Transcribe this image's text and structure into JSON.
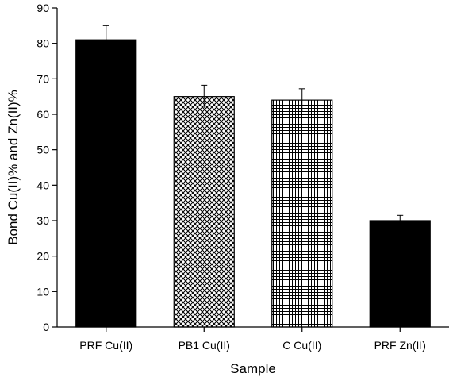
{
  "chart_data": {
    "type": "bar",
    "categories": [
      "PRF Cu(II)",
      "PB1 Cu(II)",
      "C Cu(II)",
      "PRF Zn(II)"
    ],
    "values": [
      81,
      65,
      64,
      30
    ],
    "errors": [
      4,
      3.2,
      3.2,
      1.5
    ],
    "patterns": [
      "solid",
      "diagonal-crosshatch",
      "grid",
      "solid"
    ],
    "xlabel": "Sample",
    "ylabel": "Bond Cu(II)% and Zn(II)%",
    "ylim": [
      0,
      90
    ],
    "yticks": [
      0,
      10,
      20,
      30,
      40,
      50,
      60,
      70,
      80,
      90
    ],
    "grid": false,
    "bar_color": "#000000"
  }
}
